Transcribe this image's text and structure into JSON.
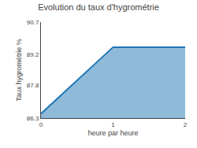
{
  "chart_data": {
    "type": "area",
    "title": "Evolution du taux d'hygrométrie",
    "xlabel": "heure par heure",
    "ylabel": "Taux hygrométrie %",
    "x": [
      0,
      1,
      2
    ],
    "values": [
      86.5,
      89.55,
      89.55
    ],
    "xlim": [
      0,
      2
    ],
    "ylim": [
      86.3,
      90.7
    ],
    "xticks": [
      0,
      1,
      2
    ],
    "yticks": [
      86.3,
      87.8,
      89.2,
      90.7
    ],
    "grid": false
  }
}
